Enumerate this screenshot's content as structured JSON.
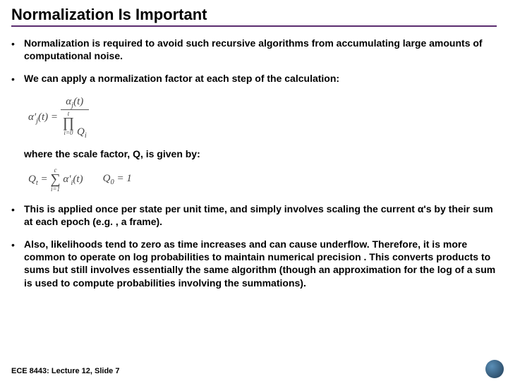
{
  "title": "Normalization Is Important",
  "bullets": {
    "b1": "Normalization is required to avoid such recursive algorithms from accumulating large amounts of computational noise.",
    "b2": "We can apply a normalization factor at each step of the calculation:",
    "b3": "This is applied once per state per unit time, and simply involves scaling the current α's by their sum at each epoch (e.g. , a frame).",
    "b4": "Also, likelihoods tend to zero as time increases and can cause underflow. Therefore, it is more common to operate on log probabilities to maintain numerical precision . This converts products to sums but still involves essentially the same algorithm (though an approximation for the log of a sum is used to compute probabilities involving the summations)."
  },
  "subtext1": "where the scale factor, Q, is given by:",
  "formula1": {
    "lhs": "α'",
    "lhs_sub": "j",
    "lhs_arg": "(t) =",
    "num": "α",
    "num_sub": "j",
    "num_arg": "(t)",
    "prod_sym": "∏",
    "prod_upper": "t",
    "prod_lower": "i=0",
    "prod_term": "Q",
    "prod_term_sub": "i"
  },
  "formula2": {
    "lhs": "Q",
    "lhs_sub": "t",
    "eq": " = ",
    "sum_sym": "∑",
    "sum_upper": "c",
    "sum_lower": "i=1",
    "term": "α'",
    "term_sub": "i",
    "term_arg": "(t)",
    "init": "Q",
    "init_sub": "0",
    "init_val": " = 1"
  },
  "footer": "ECE 8443: Lecture 12, Slide 7",
  "colors": {
    "underline": "#5b2c6f",
    "text": "#000000",
    "formula": "#444444",
    "background": "#ffffff"
  }
}
